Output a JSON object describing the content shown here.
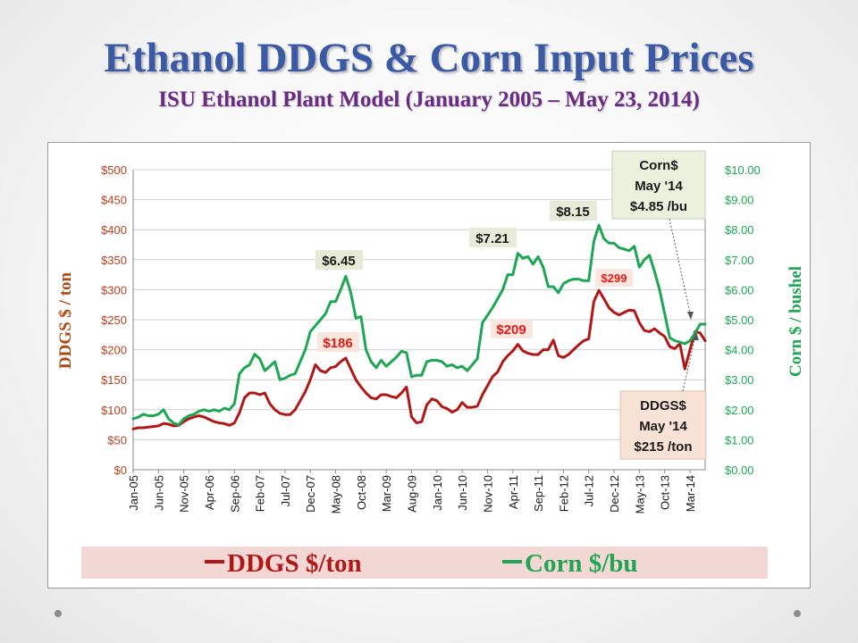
{
  "slide": {
    "title": "Ethanol DDGS & Corn Input Prices",
    "subtitle": "ISU Ethanol Plant Model (January 2005 – May 23, 2014)"
  },
  "colors": {
    "title": "#3b5aa6",
    "subtitle": "#6a2c82",
    "ddgs": "#b01818",
    "corn": "#1ea654",
    "legend_bg": "#f2d7d5",
    "callout_corn_bg": "#eaf1dd",
    "callout_ddgs_bg": "#f8e2d6",
    "peak_corn_bg": "#e6ead7",
    "peak_ddgs_bg": "#fae6dc"
  },
  "chart_data": {
    "type": "line",
    "x_labels": [
      "Jan-05",
      "Jun-05",
      "Nov-05",
      "Apr-06",
      "Sep-06",
      "Feb-07",
      "Jul-07",
      "Dec-07",
      "May-08",
      "Oct-08",
      "Mar-09",
      "Aug-09",
      "Jan-10",
      "Jun-10",
      "Nov-10",
      "Apr-11",
      "Sep-11",
      "Feb-12",
      "Jul-12",
      "Dec-12",
      "May-13",
      "Oct-13",
      "Mar-14"
    ],
    "series": [
      {
        "name": "DDGS $/ton",
        "axis": "left",
        "color": "#b01818",
        "points": [
          [
            0,
            68
          ],
          [
            1,
            70
          ],
          [
            2,
            70
          ],
          [
            3,
            71
          ],
          [
            4,
            72
          ],
          [
            5,
            73
          ],
          [
            6,
            77
          ],
          [
            7,
            76
          ],
          [
            8,
            73
          ],
          [
            9,
            74
          ],
          [
            10,
            80
          ],
          [
            11,
            85
          ],
          [
            12,
            88
          ],
          [
            13,
            90
          ],
          [
            14,
            88
          ],
          [
            15,
            84
          ],
          [
            16,
            80
          ],
          [
            17,
            78
          ],
          [
            18,
            77
          ],
          [
            19,
            74
          ],
          [
            20,
            78
          ],
          [
            21,
            95
          ],
          [
            22,
            120
          ],
          [
            23,
            128
          ],
          [
            24,
            128
          ],
          [
            25,
            125
          ],
          [
            26,
            128
          ],
          [
            27,
            110
          ],
          [
            28,
            100
          ],
          [
            29,
            94
          ],
          [
            30,
            92
          ],
          [
            31,
            92
          ],
          [
            32,
            100
          ],
          [
            33,
            115
          ],
          [
            34,
            130
          ],
          [
            35,
            150
          ],
          [
            36,
            175
          ],
          [
            37,
            165
          ],
          [
            38,
            162
          ],
          [
            39,
            170
          ],
          [
            40,
            172
          ],
          [
            41,
            180
          ],
          [
            42,
            186
          ],
          [
            43,
            168
          ],
          [
            44,
            150
          ],
          [
            45,
            138
          ],
          [
            46,
            128
          ],
          [
            47,
            120
          ],
          [
            48,
            118
          ],
          [
            49,
            125
          ],
          [
            50,
            125
          ],
          [
            51,
            122
          ],
          [
            52,
            120
          ],
          [
            53,
            128
          ],
          [
            54,
            138
          ],
          [
            55,
            88
          ],
          [
            56,
            78
          ],
          [
            57,
            80
          ],
          [
            58,
            108
          ],
          [
            59,
            118
          ],
          [
            60,
            115
          ],
          [
            61,
            105
          ],
          [
            62,
            102
          ],
          [
            63,
            96
          ],
          [
            64,
            100
          ],
          [
            65,
            112
          ],
          [
            66,
            104
          ],
          [
            67,
            104
          ],
          [
            68,
            106
          ],
          [
            69,
            125
          ],
          [
            70,
            140
          ],
          [
            71,
            155
          ],
          [
            72,
            163
          ],
          [
            73,
            180
          ],
          [
            74,
            190
          ],
          [
            75,
            198
          ],
          [
            76,
            209
          ],
          [
            77,
            198
          ],
          [
            78,
            194
          ],
          [
            79,
            192
          ],
          [
            80,
            192
          ],
          [
            81,
            200
          ],
          [
            82,
            200
          ],
          [
            83,
            216
          ],
          [
            84,
            190
          ],
          [
            85,
            187
          ],
          [
            86,
            192
          ],
          [
            87,
            200
          ],
          [
            88,
            208
          ],
          [
            89,
            215
          ],
          [
            90,
            218
          ],
          [
            91,
            280
          ],
          [
            92,
            299
          ],
          [
            93,
            285
          ],
          [
            94,
            270
          ],
          [
            95,
            262
          ],
          [
            96,
            258
          ],
          [
            97,
            262
          ],
          [
            98,
            266
          ],
          [
            99,
            265
          ],
          [
            100,
            245
          ],
          [
            101,
            232
          ],
          [
            102,
            230
          ],
          [
            103,
            235
          ],
          [
            104,
            228
          ],
          [
            105,
            222
          ],
          [
            106,
            205
          ],
          [
            107,
            202
          ],
          [
            108,
            210
          ],
          [
            109,
            168
          ],
          [
            110,
            200
          ],
          [
            111,
            230
          ],
          [
            112,
            228
          ],
          [
            113,
            215
          ]
        ]
      },
      {
        "name": "Corn $/bu",
        "axis": "right",
        "color": "#1ea654",
        "points": [
          [
            0,
            1.7
          ],
          [
            1,
            1.75
          ],
          [
            2,
            1.85
          ],
          [
            3,
            1.8
          ],
          [
            4,
            1.8
          ],
          [
            5,
            1.85
          ],
          [
            6,
            2.0
          ],
          [
            7,
            1.7
          ],
          [
            8,
            1.55
          ],
          [
            9,
            1.5
          ],
          [
            10,
            1.7
          ],
          [
            11,
            1.8
          ],
          [
            12,
            1.85
          ],
          [
            13,
            1.95
          ],
          [
            14,
            2.0
          ],
          [
            15,
            1.95
          ],
          [
            16,
            2.0
          ],
          [
            17,
            1.95
          ],
          [
            18,
            2.05
          ],
          [
            19,
            2.0
          ],
          [
            20,
            2.2
          ],
          [
            21,
            3.2
          ],
          [
            22,
            3.4
          ],
          [
            23,
            3.5
          ],
          [
            24,
            3.85
          ],
          [
            25,
            3.7
          ],
          [
            26,
            3.3
          ],
          [
            27,
            3.45
          ],
          [
            28,
            3.6
          ],
          [
            29,
            3.0
          ],
          [
            30,
            3.05
          ],
          [
            31,
            3.15
          ],
          [
            32,
            3.2
          ],
          [
            33,
            3.6
          ],
          [
            34,
            4.0
          ],
          [
            35,
            4.6
          ],
          [
            36,
            4.8
          ],
          [
            37,
            5.0
          ],
          [
            38,
            5.2
          ],
          [
            39,
            5.6
          ],
          [
            40,
            5.6
          ],
          [
            41,
            6.0
          ],
          [
            42,
            6.45
          ],
          [
            43,
            5.9
          ],
          [
            44,
            5.05
          ],
          [
            45,
            5.1
          ],
          [
            46,
            4.0
          ],
          [
            47,
            3.6
          ],
          [
            48,
            3.4
          ],
          [
            49,
            3.65
          ],
          [
            50,
            3.45
          ],
          [
            51,
            3.6
          ],
          [
            52,
            3.75
          ],
          [
            53,
            3.95
          ],
          [
            54,
            3.9
          ],
          [
            55,
            3.1
          ],
          [
            56,
            3.15
          ],
          [
            57,
            3.15
          ],
          [
            58,
            3.6
          ],
          [
            59,
            3.65
          ],
          [
            60,
            3.65
          ],
          [
            61,
            3.6
          ],
          [
            62,
            3.45
          ],
          [
            63,
            3.5
          ],
          [
            64,
            3.4
          ],
          [
            65,
            3.45
          ],
          [
            66,
            3.3
          ],
          [
            67,
            3.5
          ],
          [
            68,
            3.7
          ],
          [
            69,
            4.9
          ],
          [
            70,
            5.15
          ],
          [
            71,
            5.4
          ],
          [
            72,
            5.7
          ],
          [
            73,
            6.0
          ],
          [
            74,
            6.5
          ],
          [
            75,
            6.5
          ],
          [
            76,
            7.21
          ],
          [
            77,
            7.05
          ],
          [
            78,
            7.1
          ],
          [
            79,
            6.85
          ],
          [
            80,
            7.1
          ],
          [
            81,
            6.75
          ],
          [
            82,
            6.1
          ],
          [
            83,
            6.1
          ],
          [
            84,
            5.9
          ],
          [
            85,
            6.2
          ],
          [
            86,
            6.3
          ],
          [
            87,
            6.35
          ],
          [
            88,
            6.35
          ],
          [
            89,
            6.3
          ],
          [
            90,
            6.3
          ],
          [
            91,
            7.6
          ],
          [
            92,
            8.15
          ],
          [
            93,
            7.7
          ],
          [
            94,
            7.55
          ],
          [
            95,
            7.55
          ],
          [
            96,
            7.4
          ],
          [
            97,
            7.35
          ],
          [
            98,
            7.3
          ],
          [
            99,
            7.45
          ],
          [
            100,
            6.75
          ],
          [
            101,
            7.0
          ],
          [
            102,
            7.15
          ],
          [
            103,
            6.6
          ],
          [
            104,
            6.0
          ],
          [
            105,
            5.2
          ],
          [
            106,
            4.4
          ],
          [
            107,
            4.3
          ],
          [
            108,
            4.25
          ],
          [
            109,
            4.2
          ],
          [
            110,
            4.3
          ],
          [
            111,
            4.55
          ],
          [
            112,
            4.85
          ],
          [
            113,
            4.85
          ]
        ]
      }
    ],
    "x_range": [
      0,
      113
    ],
    "y_left": {
      "label": "DDGS $ / ton",
      "range": [
        0,
        500
      ],
      "ticks": [
        "$0",
        "$50",
        "$100",
        "$150",
        "$200",
        "$250",
        "$300",
        "$350",
        "$400",
        "$450",
        "$500"
      ],
      "values": [
        0,
        50,
        100,
        150,
        200,
        250,
        300,
        350,
        400,
        450,
        500
      ]
    },
    "y_right": {
      "label": "Corn $ / bushel",
      "range": [
        0,
        10
      ],
      "ticks": [
        "$0.00",
        "$1.00",
        "$2.00",
        "$3.00",
        "$4.00",
        "$5.00",
        "$6.00",
        "$7.00",
        "$8.00",
        "$9.00",
        "$10.00"
      ],
      "values": [
        0,
        1,
        2,
        3,
        4,
        5,
        6,
        7,
        8,
        9,
        10
      ]
    },
    "grid": true,
    "annotations": {
      "corn_peaks": [
        {
          "text": "$6.45",
          "x": 42,
          "y": 6.45
        },
        {
          "text": "$7.21",
          "x": 76,
          "y": 7.21
        },
        {
          "text": "$8.15",
          "x": 92,
          "y": 8.15
        }
      ],
      "ddgs_peaks": [
        {
          "text": "$186",
          "x": 42,
          "y": 186
        },
        {
          "text": "$209",
          "x": 76,
          "y": 209
        },
        {
          "text": "$299",
          "x": 92,
          "y": 299
        }
      ],
      "corn_callout": [
        "Corn$",
        "May '14",
        "$4.85 /bu"
      ],
      "ddgs_callout": [
        "DDGS$",
        "May '14",
        "$215 /ton"
      ]
    },
    "legend": {
      "position": "bottom",
      "items": [
        "DDGS $/ton",
        "Corn $/bu"
      ]
    }
  }
}
